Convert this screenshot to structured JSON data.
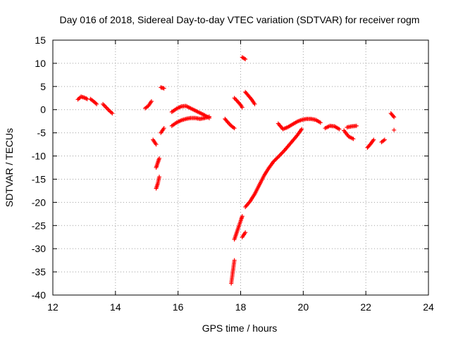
{
  "chart_data": {
    "type": "scatter",
    "title": "Day 016 of 2018, Sidereal Day-to-day VTEC variation (SDTVAR) for receiver rogm",
    "xlabel": "GPS time / hours",
    "ylabel": "SDTVAR / TECUs",
    "xlim": [
      12,
      24
    ],
    "ylim": [
      -40,
      15
    ],
    "xticks": [
      12,
      14,
      16,
      18,
      20,
      22,
      24
    ],
    "yticks": [
      15,
      10,
      5,
      0,
      -5,
      -10,
      -15,
      -20,
      -25,
      -30,
      -35,
      -40
    ],
    "grid": true,
    "marker": "plus",
    "color": "#ff0000",
    "segments": [
      {
        "x": [
          12.8,
          12.9,
          13.0,
          13.1
        ],
        "y": [
          2.2,
          2.8,
          2.6,
          2.3
        ]
      },
      {
        "x": [
          13.2,
          13.3,
          13.4
        ],
        "y": [
          2.3,
          1.8,
          1.2
        ]
      },
      {
        "x": [
          13.6,
          13.7,
          13.8,
          13.9
        ],
        "y": [
          1.2,
          0.5,
          -0.2,
          -0.8
        ]
      },
      {
        "x": [
          14.95,
          15.05,
          15.15
        ],
        "y": [
          0.3,
          0.8,
          1.8
        ]
      },
      {
        "x": [
          15.2,
          15.25,
          15.3
        ],
        "y": [
          -6.5,
          -7.0,
          -7.5
        ]
      },
      {
        "x": [
          15.3,
          15.35,
          15.4
        ],
        "y": [
          -12.5,
          -11.5,
          -10.5
        ]
      },
      {
        "x": [
          15.3,
          15.35,
          15.4
        ],
        "y": [
          -17.0,
          -16.0,
          -14.5
        ]
      },
      {
        "x": [
          15.45,
          15.55
        ],
        "y": [
          -5.0,
          -4.0
        ]
      },
      {
        "x": [
          15.45,
          15.55
        ],
        "y": [
          4.8,
          4.6
        ]
      },
      {
        "x": [
          15.8,
          15.95,
          16.1,
          16.25,
          16.4,
          16.55,
          16.7,
          16.85,
          17.0
        ],
        "y": [
          -0.5,
          0.2,
          0.7,
          0.8,
          0.3,
          -0.2,
          -0.7,
          -1.2,
          -1.8
        ]
      },
      {
        "x": [
          15.8,
          15.95,
          16.1,
          16.25,
          16.4,
          16.55,
          16.7,
          16.85,
          17.0
        ],
        "y": [
          -3.5,
          -2.8,
          -2.3,
          -2.0,
          -1.8,
          -1.8,
          -2.0,
          -1.8,
          -1.5
        ]
      },
      {
        "x": [
          17.5,
          17.6,
          17.7,
          17.8
        ],
        "y": [
          -2.0,
          -2.8,
          -3.5,
          -4.0
        ]
      },
      {
        "x": [
          17.7,
          17.75,
          17.8
        ],
        "y": [
          -37.5,
          -35.0,
          -32.5
        ]
      },
      {
        "x": [
          17.8,
          17.9,
          18.0,
          18.05
        ],
        "y": [
          -28.0,
          -26.0,
          -24.0,
          -23.0
        ]
      },
      {
        "x": [
          18.05,
          18.15
        ],
        "y": [
          -27.5,
          -26.5
        ]
      },
      {
        "x": [
          17.8,
          17.9,
          18.0,
          18.05
        ],
        "y": [
          2.5,
          1.8,
          1.0,
          0.5
        ]
      },
      {
        "x": [
          18.05,
          18.15
        ],
        "y": [
          11.3,
          10.9
        ]
      },
      {
        "x": [
          18.15,
          18.25,
          18.35,
          18.45
        ],
        "y": [
          3.8,
          3.0,
          2.2,
          1.2
        ]
      },
      {
        "x": [
          18.15,
          18.3,
          18.45,
          18.6,
          18.75,
          18.9,
          19.05,
          19.2,
          19.4,
          19.6,
          19.8,
          19.95
        ],
        "y": [
          -21.0,
          -19.8,
          -18.2,
          -16.2,
          -14.2,
          -12.6,
          -11.2,
          -10.2,
          -8.8,
          -7.2,
          -5.6,
          -4.2
        ]
      },
      {
        "x": [
          19.2,
          19.35,
          19.5,
          19.65,
          19.8,
          19.95,
          20.1,
          20.25,
          20.4,
          20.55
        ],
        "y": [
          -3.0,
          -4.2,
          -3.8,
          -3.2,
          -2.6,
          -2.2,
          -2.0,
          -2.0,
          -2.2,
          -2.8
        ]
      },
      {
        "x": [
          20.7,
          20.85,
          21.0,
          21.15
        ],
        "y": [
          -4.0,
          -3.5,
          -3.6,
          -4.2
        ]
      },
      {
        "x": [
          21.3,
          21.45,
          21.6
        ],
        "y": [
          -4.5,
          -5.8,
          -6.3
        ]
      },
      {
        "x": [
          21.4,
          21.55,
          21.7
        ],
        "y": [
          -3.8,
          -3.6,
          -3.5
        ]
      },
      {
        "x": [
          22.05,
          22.15,
          22.25
        ],
        "y": [
          -8.2,
          -7.4,
          -6.5
        ]
      },
      {
        "x": [
          22.5,
          22.6
        ],
        "y": [
          -7.0,
          -6.5
        ]
      },
      {
        "x": [
          22.8,
          22.85,
          22.9
        ],
        "y": [
          -0.8,
          -1.2,
          -1.6
        ]
      },
      {
        "x": [
          22.9
        ],
        "y": [
          -4.4
        ]
      }
    ]
  }
}
